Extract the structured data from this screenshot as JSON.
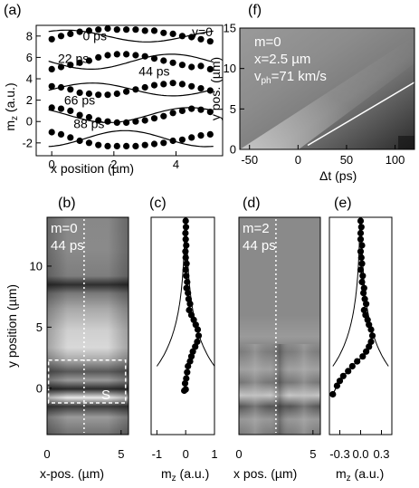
{
  "figure": {
    "panel_labels": {
      "a": "(a)",
      "b": "(b)",
      "c": "(c)",
      "d": "(d)",
      "e": "(e)",
      "f": "(f)"
    }
  },
  "chart_data": [
    {
      "id": "a",
      "type": "scatter",
      "xlabel": "x position (µm)",
      "ylabel_main": "m",
      "ylabel_sub": "z",
      "ylabel_unit": " (a.u.)",
      "xlim": [
        -0.5,
        5.5
      ],
      "ylim": [
        -3.2,
        9.0
      ],
      "xticks": [
        0,
        2,
        4
      ],
      "yticks": [
        -2,
        0,
        2,
        4,
        6,
        8
      ],
      "annotations": {
        "y0": "y=0"
      },
      "series": [
        {
          "name": "0 ps",
          "offset": 8.0,
          "amp": 0.55,
          "phase": 1.0,
          "points": [
            [
              0.0,
              7.7
            ],
            [
              0.3,
              8.0
            ],
            [
              0.6,
              8.2
            ],
            [
              0.9,
              8.4
            ],
            [
              1.2,
              8.5
            ],
            [
              1.5,
              8.6
            ],
            [
              1.8,
              8.7
            ],
            [
              2.1,
              8.6
            ],
            [
              2.4,
              8.6
            ],
            [
              2.7,
              8.6
            ],
            [
              3.0,
              8.5
            ],
            [
              3.3,
              8.5
            ],
            [
              3.6,
              8.3
            ],
            [
              3.9,
              8.2
            ],
            [
              4.2,
              8.0
            ],
            [
              4.5,
              7.9
            ],
            [
              4.8,
              7.7
            ],
            [
              5.1,
              7.5
            ]
          ]
        },
        {
          "name": "22 ps",
          "offset": 5.6,
          "amp": 0.7,
          "phase": 3.2,
          "points": [
            [
              0.0,
              4.9
            ],
            [
              0.3,
              5.1
            ],
            [
              0.6,
              5.3
            ],
            [
              0.9,
              5.5
            ],
            [
              1.2,
              5.7
            ],
            [
              1.5,
              6.0
            ],
            [
              1.8,
              6.2
            ],
            [
              2.1,
              6.3
            ],
            [
              2.4,
              6.3
            ],
            [
              2.7,
              6.2
            ],
            [
              3.0,
              6.1
            ],
            [
              3.3,
              5.9
            ],
            [
              3.6,
              5.7
            ],
            [
              3.9,
              5.5
            ],
            [
              4.2,
              5.3
            ],
            [
              4.5,
              5.1
            ],
            [
              4.8,
              5.2
            ],
            [
              5.1,
              4.9
            ]
          ]
        },
        {
          "name": "44 ps",
          "offset": 3.0,
          "amp": 0.6,
          "phase": 0.0,
          "points": [
            [
              0.0,
              3.3
            ],
            [
              0.3,
              3.2
            ],
            [
              0.6,
              3.0
            ],
            [
              0.9,
              2.7
            ],
            [
              1.2,
              2.6
            ],
            [
              1.5,
              2.5
            ],
            [
              1.8,
              2.5
            ],
            [
              2.1,
              2.6
            ],
            [
              2.4,
              2.8
            ],
            [
              2.7,
              3.0
            ],
            [
              3.0,
              3.2
            ],
            [
              3.3,
              3.4
            ],
            [
              3.6,
              3.5
            ],
            [
              3.9,
              3.6
            ],
            [
              4.2,
              3.5
            ],
            [
              4.5,
              3.3
            ],
            [
              4.8,
              3.1
            ],
            [
              5.1,
              2.9
            ]
          ]
        },
        {
          "name": "66 ps",
          "offset": 0.6,
          "amp": 0.7,
          "phase": 2.5,
          "points": [
            [
              0.0,
              1.3
            ],
            [
              0.3,
              1.2
            ],
            [
              0.6,
              1.0
            ],
            [
              0.9,
              0.6
            ],
            [
              1.2,
              0.4
            ],
            [
              1.5,
              0.1
            ],
            [
              1.8,
              0.0
            ],
            [
              2.1,
              -0.1
            ],
            [
              2.4,
              -0.1
            ],
            [
              2.7,
              0.0
            ],
            [
              3.0,
              0.1
            ],
            [
              3.3,
              0.3
            ],
            [
              3.6,
              0.5
            ],
            [
              3.9,
              0.8
            ],
            [
              4.2,
              1.0
            ],
            [
              4.5,
              1.2
            ],
            [
              4.8,
              1.1
            ],
            [
              5.1,
              0.9
            ]
          ]
        },
        {
          "name": "88 ps",
          "offset": -1.6,
          "amp": 0.75,
          "phase": 5.0,
          "points": [
            [
              0.0,
              -1.0
            ],
            [
              0.3,
              -1.2
            ],
            [
              0.6,
              -1.5
            ],
            [
              0.9,
              -1.8
            ],
            [
              1.2,
              -2.0
            ],
            [
              1.5,
              -2.2
            ],
            [
              1.8,
              -2.3
            ],
            [
              2.1,
              -2.3
            ],
            [
              2.4,
              -2.3
            ],
            [
              2.7,
              -2.3
            ],
            [
              3.0,
              -2.2
            ],
            [
              3.3,
              -2.1
            ],
            [
              3.6,
              -2.0
            ],
            [
              3.9,
              -1.8
            ],
            [
              4.2,
              -1.7
            ],
            [
              4.5,
              -1.5
            ],
            [
              4.8,
              -1.3
            ],
            [
              5.1,
              -1.2
            ]
          ]
        }
      ]
    },
    {
      "id": "f",
      "type": "heatmap",
      "xlabel": "Δt (ps)",
      "ylabel": "y pos. (µm)",
      "xlim": [
        -60,
        120
      ],
      "ylim": [
        0,
        15
      ],
      "xticks": [
        -50,
        0,
        50,
        100
      ],
      "yticks": [
        0,
        5,
        10,
        15
      ],
      "annotations": {
        "m": "m=0",
        "x": "x=2.5 µm",
        "v_main": "v",
        "v_sub": "ph",
        "v_rest": "=71 km/s"
      },
      "fit_line": {
        "color": "#ffffff",
        "x": [
          10,
          120
        ],
        "y": [
          0.5,
          8.3
        ]
      }
    },
    {
      "id": "b",
      "type": "heatmap",
      "xlabel": "x-pos. (µm)",
      "ylabel": "y position (µm)",
      "xlim": [
        0,
        5.5
      ],
      "ylim": [
        -3.8,
        14.0
      ],
      "xticks": [
        0,
        5
      ],
      "yticks": [
        0,
        5,
        10
      ],
      "annotations": {
        "mode": "m=0",
        "time": "44 ps",
        "region": "S"
      },
      "cut_x": 2.5,
      "region_box": {
        "x": [
          0.1,
          5.3
        ],
        "y": [
          -1.2,
          2.3
        ]
      }
    },
    {
      "id": "c",
      "type": "scatter",
      "xlabel_main": "m",
      "xlabel_sub": "z",
      "xlabel_unit": " (a.u.)",
      "xlim": [
        -1.2,
        1.0
      ],
      "ylim": [
        -3.8,
        14.0
      ],
      "xticks": [
        -1,
        0,
        1
      ],
      "xticklabels": [
        "-1",
        "0",
        "1"
      ],
      "points": [
        [
          0.0,
          13.7
        ],
        [
          0.01,
          13.2
        ],
        [
          -0.01,
          12.7
        ],
        [
          0.0,
          12.2
        ],
        [
          0.02,
          11.7
        ],
        [
          -0.01,
          11.2
        ],
        [
          0.0,
          10.7
        ],
        [
          0.03,
          10.2
        ],
        [
          0.0,
          9.7
        ],
        [
          0.02,
          9.2
        ],
        [
          0.05,
          8.7
        ],
        [
          0.03,
          8.2
        ],
        [
          0.08,
          7.8
        ],
        [
          0.1,
          7.3
        ],
        [
          0.15,
          6.9
        ],
        [
          0.12,
          6.4
        ],
        [
          0.2,
          6.0
        ],
        [
          0.28,
          5.6
        ],
        [
          0.35,
          5.2
        ],
        [
          0.42,
          4.8
        ],
        [
          0.45,
          4.3
        ],
        [
          0.4,
          3.8
        ],
        [
          0.33,
          3.4
        ],
        [
          0.25,
          3.0
        ],
        [
          0.2,
          2.6
        ],
        [
          0.15,
          2.2
        ],
        [
          0.08,
          1.8
        ],
        [
          0.05,
          1.3
        ],
        [
          0.02,
          0.8
        ],
        [
          -0.02,
          0.4
        ],
        [
          0.0,
          -0.1
        ],
        [
          -0.05,
          -0.2
        ]
      ],
      "envelope": {
        "mid": 0.0,
        "a": 1.0,
        "tau": 3.3,
        "y0": 1.8,
        "y1": 14.0
      }
    },
    {
      "id": "d",
      "type": "heatmap",
      "xlabel": "x pos. (µm)",
      "xlim": [
        0,
        5.5
      ],
      "ylim": [
        -3.8,
        14.0
      ],
      "xticks": [
        0,
        5
      ],
      "annotations": {
        "mode": "m=2",
        "time": "44 ps"
      },
      "cut_x": 2.5
    },
    {
      "id": "e",
      "type": "scatter",
      "xlabel_main": "m",
      "xlabel_sub": "z",
      "xlabel_unit": " (a.u.)",
      "xlim": [
        -0.45,
        0.45
      ],
      "ylim": [
        -3.8,
        14.0
      ],
      "xticks": [
        -0.3,
        0.0,
        0.3
      ],
      "xticklabels": [
        "-0.3",
        "0.0",
        "0.3"
      ],
      "points": [
        [
          0.0,
          13.7
        ],
        [
          0.01,
          13.2
        ],
        [
          0.0,
          12.7
        ],
        [
          0.0,
          12.2
        ],
        [
          0.02,
          11.7
        ],
        [
          0.0,
          11.2
        ],
        [
          0.01,
          10.7
        ],
        [
          0.02,
          10.2
        ],
        [
          0.0,
          9.7
        ],
        [
          0.03,
          9.2
        ],
        [
          0.02,
          8.7
        ],
        [
          0.05,
          8.2
        ],
        [
          0.04,
          7.8
        ],
        [
          0.06,
          7.3
        ],
        [
          0.08,
          6.9
        ],
        [
          0.05,
          6.4
        ],
        [
          0.07,
          6.0
        ],
        [
          0.1,
          5.6
        ],
        [
          0.12,
          5.2
        ],
        [
          0.15,
          4.8
        ],
        [
          0.17,
          4.3
        ],
        [
          0.15,
          3.8
        ],
        [
          0.12,
          3.4
        ],
        [
          0.08,
          3.0
        ],
        [
          0.03,
          2.6
        ],
        [
          -0.05,
          2.2
        ],
        [
          -0.12,
          1.8
        ],
        [
          -0.18,
          1.4
        ],
        [
          -0.25,
          1.0
        ],
        [
          -0.3,
          0.6
        ],
        [
          -0.34,
          0.2
        ],
        [
          -0.4,
          -0.5
        ]
      ],
      "envelope": {
        "mid": 0.0,
        "a": 0.4,
        "tau": 3.3,
        "y0": 1.8,
        "y1": 14.0
      }
    }
  ]
}
